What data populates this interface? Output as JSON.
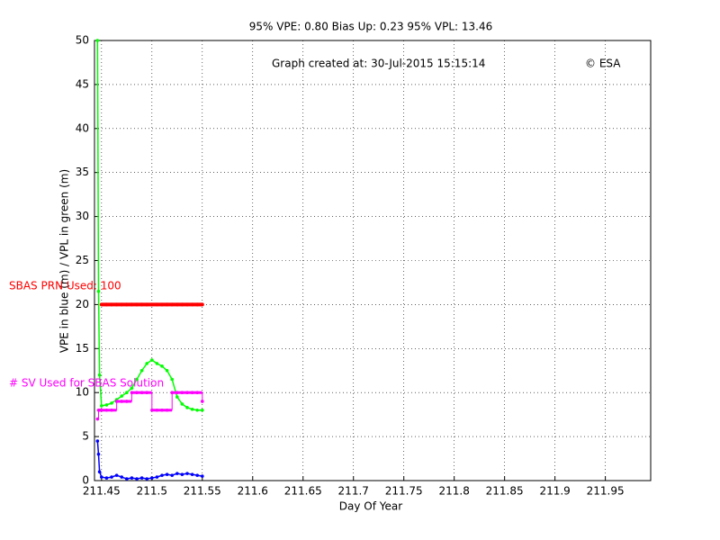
{
  "chart_data": {
    "type": "line",
    "title": "95% VPE: 0.80  Bias Up: 0.23  95% VPL: 13.46",
    "annotations": [
      "Graph created at: 30-Jul-2015 15:15:14",
      "© ESA"
    ],
    "x_label": "Day Of Year",
    "y_label": "VPE in blue (m) / VPL in green (m)",
    "x": [
      211.446,
      211.447,
      211.448,
      211.45,
      211.455,
      211.46,
      211.465,
      211.47,
      211.475,
      211.48,
      211.485,
      211.49,
      211.495,
      211.5,
      211.505,
      211.51,
      211.515,
      211.52,
      211.525,
      211.53,
      211.535,
      211.54,
      211.545,
      211.55
    ],
    "series": [
      {
        "color": "#00ff00",
        "values": [
          50,
          21.5,
          12,
          8.5,
          8.6,
          8.8,
          9.2,
          9.6,
          10,
          10.5,
          11.5,
          12.5,
          13.3,
          13.7,
          13.3,
          13,
          12.5,
          11.5,
          9.5,
          8.7,
          8.3,
          8.1,
          8,
          8
        ]
      },
      {
        "color": "#0000ff",
        "values": [
          4.5,
          3,
          1,
          0.4,
          0.3,
          0.4,
          0.6,
          0.4,
          0.2,
          0.3,
          0.2,
          0.3,
          0.2,
          0.3,
          0.4,
          0.6,
          0.7,
          0.6,
          0.8,
          0.7,
          0.8,
          0.7,
          0.6,
          0.5
        ]
      },
      {
        "name": "# SV Used for SBAS Solution",
        "color": "#ff00ff",
        "step": true,
        "values": [
          7,
          8,
          8,
          8,
          8,
          8,
          9,
          9,
          9,
          10,
          10,
          10,
          10,
          8,
          8,
          8,
          8,
          10,
          10,
          10,
          10,
          10,
          10,
          9
        ]
      },
      {
        "name": "SBAS PRN Used:  100",
        "color": "#ff0000",
        "width": 4,
        "values": [
          null,
          null,
          null,
          20,
          20,
          20,
          20,
          20,
          20,
          20,
          20,
          20,
          20,
          20,
          20,
          20,
          20,
          20,
          20,
          20,
          20,
          20,
          20,
          20
        ]
      }
    ],
    "xlim": [
      211.443,
      211.995
    ],
    "ylim": [
      0,
      50
    ],
    "xticks": [
      211.45,
      211.5,
      211.55,
      211.6,
      211.65,
      211.7,
      211.75,
      211.8,
      211.85,
      211.9,
      211.95
    ],
    "yticks": [
      0,
      5,
      10,
      15,
      20,
      25,
      30,
      35,
      40,
      45,
      50
    ],
    "grid": true
  }
}
